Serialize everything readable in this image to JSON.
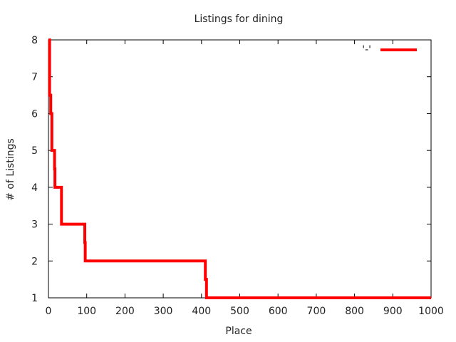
{
  "chart_data": {
    "type": "line",
    "title": "Listings for dining",
    "xlabel": "Place",
    "ylabel": "# of Listings",
    "xlim": [
      0,
      1000
    ],
    "ylim": [
      1,
      8
    ],
    "x_ticks": [
      0,
      100,
      200,
      300,
      400,
      500,
      600,
      700,
      800,
      900,
      1000
    ],
    "y_ticks": [
      1,
      2,
      3,
      4,
      5,
      6,
      7,
      8
    ],
    "grid": false,
    "legend_position": "top-right",
    "series": [
      {
        "name": "'-'",
        "color": "#ff0000",
        "step": true,
        "points": [
          [
            0,
            8
          ],
          [
            3,
            8
          ],
          [
            3,
            6.5
          ],
          [
            6,
            6.5
          ],
          [
            6,
            6
          ],
          [
            9,
            6
          ],
          [
            9,
            5
          ],
          [
            16,
            5
          ],
          [
            16,
            4.5
          ],
          [
            17,
            4.5
          ],
          [
            17,
            4
          ],
          [
            34,
            4
          ],
          [
            34,
            3
          ],
          [
            95,
            3
          ],
          [
            95,
            2.5
          ],
          [
            96,
            2.5
          ],
          [
            96,
            2
          ],
          [
            410,
            2
          ],
          [
            410,
            1.5
          ],
          [
            413,
            1.5
          ],
          [
            413,
            1
          ],
          [
            1000,
            1
          ]
        ]
      }
    ]
  }
}
